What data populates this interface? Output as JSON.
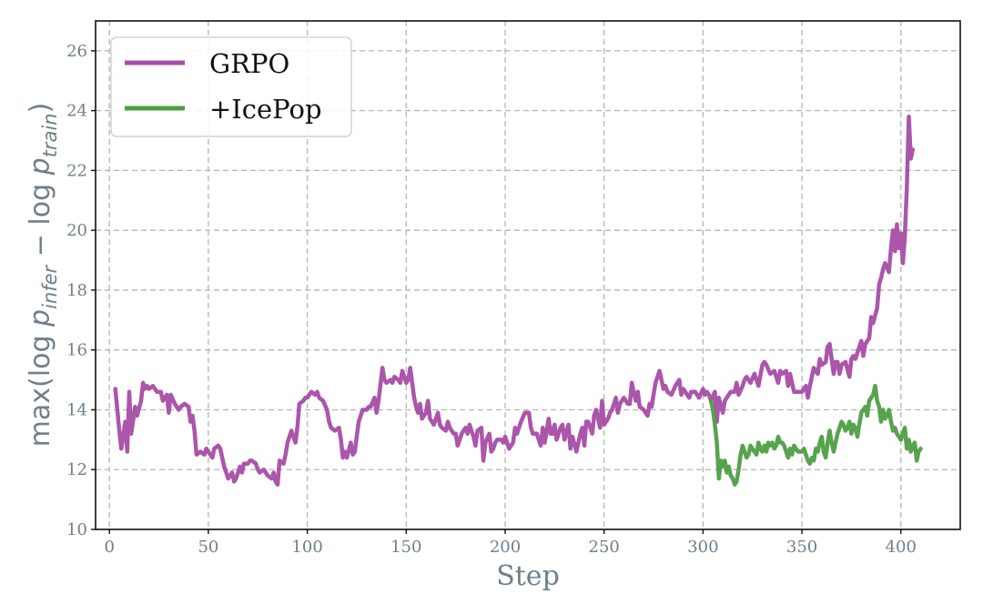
{
  "chart_data": {
    "type": "line",
    "title": "",
    "xlabel": "Step",
    "ylabel": {
      "prefix": "max(log ",
      "p1": "p",
      "sub1": "infer",
      "mid": " − log ",
      "p2": "p",
      "sub2": "train",
      "suffix": ")"
    },
    "xlim": [
      -7,
      430
    ],
    "ylim": [
      10,
      27
    ],
    "xticks": [
      0,
      50,
      100,
      150,
      200,
      250,
      300,
      350,
      400
    ],
    "yticks": [
      10,
      12,
      14,
      16,
      18,
      20,
      22,
      24,
      26
    ],
    "grid": true,
    "legend_position": "top-left",
    "colors": {
      "GRPO": "#a64ca6",
      "+IcePop": "#4e9e45"
    },
    "series": [
      {
        "name": "GRPO",
        "x": [
          3,
          5,
          6,
          8,
          9,
          10,
          11,
          13,
          14,
          16,
          17,
          18,
          19,
          20,
          22,
          24,
          26,
          27,
          29,
          30,
          31,
          33,
          34,
          35,
          36,
          38,
          40,
          41,
          42,
          43,
          44,
          46,
          48,
          49,
          50,
          52,
          53,
          55,
          56,
          57,
          58,
          60,
          62,
          63,
          64,
          66,
          67,
          68,
          70,
          71,
          72,
          74,
          75,
          76,
          78,
          79,
          80,
          82,
          83,
          84,
          85,
          86,
          88,
          89,
          90,
          91,
          92,
          94,
          95,
          96,
          98,
          99,
          100,
          102,
          104,
          105,
          106,
          108,
          110,
          111,
          112,
          114,
          116,
          117,
          118,
          119,
          120,
          122,
          123,
          124,
          126,
          127,
          128,
          130,
          131,
          132,
          134,
          135,
          136,
          138,
          139,
          140,
          142,
          143,
          144,
          146,
          147,
          148,
          150,
          151,
          152,
          154,
          155,
          156,
          157,
          158,
          160,
          161,
          162,
          163,
          164,
          166,
          167,
          168,
          170,
          171,
          172,
          174,
          175,
          176,
          178,
          180,
          181,
          182,
          184,
          185,
          186,
          188,
          189,
          190,
          192,
          193,
          194,
          195,
          196,
          198,
          199,
          200,
          202,
          204,
          205,
          206,
          208,
          210,
          212,
          213,
          214,
          216,
          218,
          219,
          220,
          222,
          223,
          224,
          225,
          226,
          228,
          229,
          230,
          232,
          233,
          234,
          236,
          238,
          239,
          240,
          241,
          242,
          244,
          245,
          246,
          248,
          249,
          250,
          252,
          253,
          254,
          256,
          257,
          258,
          260,
          262,
          263,
          264,
          266,
          267,
          268,
          270,
          272,
          273,
          274,
          276,
          278,
          280,
          281,
          282,
          284,
          286,
          288,
          289,
          290,
          292,
          293,
          294,
          296,
          298,
          300,
          301,
          302,
          303,
          304,
          306,
          307,
          308,
          310,
          311,
          312,
          314,
          316,
          317,
          318,
          320,
          321,
          322,
          324,
          326,
          328,
          330,
          331,
          332,
          334,
          336,
          338,
          339,
          340,
          342,
          343,
          344,
          346,
          348,
          349,
          350,
          352,
          353,
          354,
          356,
          358,
          359,
          360,
          362,
          363,
          364,
          366,
          367,
          368,
          369,
          370,
          372,
          374,
          375,
          376,
          377,
          378,
          380,
          381,
          382,
          384,
          385,
          386,
          388,
          389,
          390,
          391,
          392,
          394,
          395,
          396,
          397,
          398,
          399,
          400,
          401,
          402,
          403,
          404,
          405,
          406
        ],
        "values": [
          14.7,
          13.3,
          12.7,
          13.6,
          12.6,
          14.6,
          13.2,
          14.1,
          13.8,
          14.3,
          14.9,
          14.7,
          14.8,
          14.7,
          14.8,
          14.6,
          14.6,
          14.3,
          14.5,
          13.9,
          14.5,
          14.2,
          14.1,
          14.0,
          14.1,
          14.2,
          14.1,
          13.6,
          13.8,
          13.3,
          12.5,
          12.6,
          12.5,
          12.7,
          12.6,
          12.4,
          12.7,
          12.8,
          12.7,
          12.4,
          12.1,
          11.7,
          11.9,
          11.6,
          11.7,
          12.1,
          11.9,
          12.2,
          12.2,
          12.3,
          12.3,
          12.2,
          12.0,
          11.9,
          12.0,
          11.9,
          11.8,
          11.7,
          11.9,
          11.6,
          11.5,
          12.3,
          12.2,
          12.5,
          12.9,
          13.1,
          13.3,
          12.9,
          13.4,
          14.2,
          14.3,
          14.4,
          14.4,
          14.6,
          14.5,
          14.6,
          14.4,
          14.3,
          14.0,
          13.6,
          13.4,
          13.3,
          13.4,
          13.0,
          12.4,
          12.6,
          12.4,
          12.9,
          12.5,
          12.6,
          13.6,
          13.8,
          14.0,
          14.0,
          14.1,
          14.1,
          14.4,
          13.9,
          14.3,
          15.4,
          15.0,
          14.9,
          15.0,
          14.9,
          15.1,
          15.0,
          14.9,
          15.3,
          14.9,
          15.0,
          15.4,
          14.4,
          14.1,
          13.9,
          14.2,
          13.7,
          13.9,
          14.3,
          13.7,
          13.6,
          13.5,
          13.9,
          13.5,
          13.4,
          13.3,
          13.6,
          13.4,
          13.2,
          13.2,
          12.8,
          13.2,
          13.4,
          13.2,
          13.5,
          13.1,
          12.8,
          13.3,
          13.4,
          12.3,
          12.9,
          13.2,
          12.6,
          12.7,
          12.9,
          13.0,
          13.0,
          12.9,
          13.1,
          12.7,
          12.9,
          13.4,
          13.2,
          13.6,
          13.9,
          13.9,
          13.4,
          13.2,
          13.2,
          12.8,
          13.4,
          12.9,
          13.7,
          13.2,
          13.2,
          13.5,
          13.0,
          13.4,
          13.5,
          13.0,
          13.5,
          12.7,
          13.1,
          12.6,
          13.2,
          13.4,
          12.8,
          13.6,
          13.6,
          13.2,
          13.8,
          14.0,
          13.4,
          14.3,
          13.5,
          13.7,
          13.9,
          14.0,
          14.4,
          13.9,
          14.2,
          14.4,
          14.2,
          14.2,
          14.9,
          14.3,
          14.6,
          14.1,
          14.0,
          13.8,
          14.2,
          14.1,
          14.9,
          15.3,
          14.7,
          14.8,
          14.6,
          14.5,
          14.8,
          15.0,
          14.5,
          14.7,
          14.5,
          14.4,
          14.6,
          14.6,
          14.4,
          14.7,
          14.5,
          14.6,
          14.5,
          14.3,
          14.6,
          13.6,
          14.4,
          13.9,
          14.3,
          14.4,
          14.6,
          14.6,
          14.9,
          14.5,
          14.8,
          15.0,
          15.1,
          14.9,
          15.2,
          14.8,
          15.5,
          15.6,
          15.5,
          15.2,
          15.3,
          14.9,
          15.3,
          15.2,
          15.3,
          14.8,
          15.2,
          14.6,
          14.6,
          14.6,
          14.6,
          14.8,
          14.4,
          14.8,
          15.4,
          15.2,
          15.7,
          15.5,
          15.6,
          16.1,
          16.2,
          15.2,
          15.6,
          15.6,
          15.2,
          15.5,
          15.6,
          15.1,
          15.7,
          15.8,
          15.7,
          15.9,
          16.3,
          15.8,
          16.2,
          16.4,
          17.1,
          16.9,
          17.4,
          18.2,
          18.4,
          18.7,
          18.9,
          18.6,
          19.4,
          20.0,
          19.3,
          20.2,
          19.4,
          19.9,
          18.9,
          19.8,
          21.4,
          23.8,
          22.4,
          22.7
        ]
      },
      {
        "name": "+IcePop",
        "x": [
          304,
          305,
          306,
          307,
          308,
          309,
          310,
          311,
          312,
          313,
          314,
          315,
          316,
          317,
          318,
          319,
          320,
          321,
          322,
          323,
          324,
          325,
          326,
          327,
          328,
          329,
          330,
          331,
          332,
          333,
          334,
          335,
          336,
          337,
          338,
          339,
          340,
          341,
          342,
          343,
          344,
          345,
          346,
          347,
          348,
          349,
          350,
          351,
          352,
          353,
          354,
          355,
          356,
          357,
          358,
          359,
          360,
          361,
          362,
          363,
          364,
          365,
          366,
          367,
          368,
          369,
          370,
          371,
          372,
          373,
          374,
          375,
          376,
          377,
          378,
          379,
          380,
          381,
          382,
          383,
          384,
          385,
          386,
          387,
          388,
          389,
          390,
          391,
          392,
          393,
          394,
          395,
          396,
          397,
          398,
          399,
          400,
          401,
          402,
          403,
          404,
          405,
          406,
          407,
          408,
          409,
          410
        ],
        "values": [
          14.3,
          14.0,
          13.5,
          12.9,
          11.7,
          12.3,
          12.1,
          12.3,
          11.9,
          12.1,
          11.8,
          11.7,
          11.5,
          11.6,
          12.0,
          12.5,
          12.8,
          12.6,
          12.4,
          12.5,
          12.8,
          12.7,
          12.6,
          12.5,
          12.9,
          12.7,
          12.6,
          12.8,
          12.6,
          12.9,
          12.8,
          12.9,
          12.7,
          12.8,
          13.1,
          12.9,
          12.9,
          12.8,
          12.6,
          12.4,
          12.7,
          12.5,
          12.8,
          12.7,
          12.6,
          12.6,
          12.6,
          12.7,
          12.5,
          12.3,
          12.2,
          12.4,
          12.3,
          12.7,
          12.6,
          12.9,
          13.1,
          12.6,
          12.4,
          12.9,
          13.3,
          12.9,
          12.6,
          12.9,
          13.2,
          13.4,
          13.6,
          13.5,
          13.3,
          13.4,
          13.6,
          13.2,
          13.5,
          13.4,
          13.1,
          13.5,
          13.9,
          14.0,
          14.1,
          13.8,
          14.3,
          14.4,
          14.5,
          14.8,
          14.3,
          14.1,
          13.6,
          14.0,
          13.7,
          13.8,
          14.0,
          13.6,
          13.3,
          13.4,
          13.2,
          13.1,
          13.0,
          13.2,
          13.4,
          12.7,
          13.0,
          12.6,
          12.8,
          12.9,
          12.3,
          12.6,
          12.7
        ]
      }
    ]
  }
}
